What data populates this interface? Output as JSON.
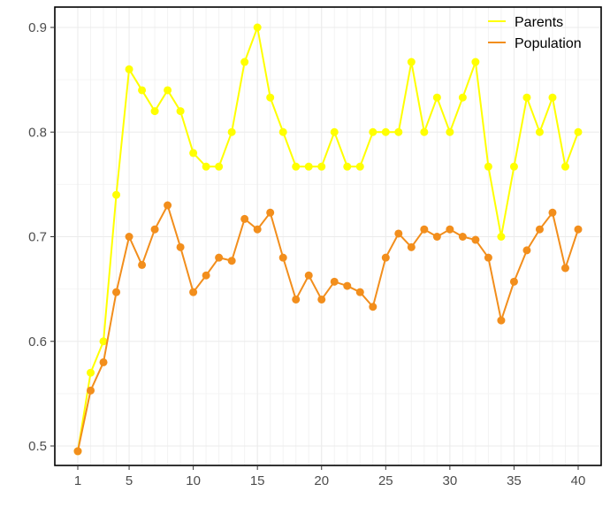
{
  "chart_data": {
    "type": "line",
    "title": "",
    "xlabel": "",
    "ylabel": "",
    "xlim": [
      1,
      40
    ],
    "ylim": [
      0.5,
      0.9
    ],
    "grid": true,
    "legend_position": "top-right",
    "x_ticks": [
      1,
      5,
      10,
      15,
      20,
      25,
      30,
      35,
      40
    ],
    "x_tick_labels": [
      "1",
      "5",
      "10",
      "15",
      "20",
      "25",
      "30",
      "35",
      "40"
    ],
    "y_ticks": [
      0.5,
      0.6,
      0.7,
      0.8,
      0.9
    ],
    "y_tick_labels": [
      "0.5",
      "0.6",
      "0.7",
      "0.8",
      "0.9"
    ],
    "x": [
      1,
      2,
      3,
      4,
      5,
      6,
      7,
      8,
      9,
      10,
      11,
      12,
      13,
      14,
      15,
      16,
      17,
      18,
      19,
      20,
      21,
      22,
      23,
      24,
      25,
      26,
      27,
      28,
      29,
      30,
      31,
      32,
      33,
      34,
      35,
      36,
      37,
      38,
      39,
      40
    ],
    "series": [
      {
        "name": "Parents",
        "color": "#ffff00",
        "values": [
          0.495,
          0.57,
          0.6,
          0.74,
          0.86,
          0.84,
          0.82,
          0.84,
          0.82,
          0.78,
          0.767,
          0.767,
          0.8,
          0.867,
          0.9,
          0.833,
          0.8,
          0.767,
          0.767,
          0.767,
          0.8,
          0.767,
          0.767,
          0.8,
          0.8,
          0.8,
          0.867,
          0.8,
          0.833,
          0.8,
          0.833,
          0.867,
          0.767,
          0.7,
          0.767,
          0.833,
          0.8,
          0.833,
          0.767,
          0.8
        ]
      },
      {
        "name": "Population",
        "color": "#f28e1c",
        "values": [
          0.495,
          0.553,
          0.58,
          0.647,
          0.7,
          0.673,
          0.707,
          0.73,
          0.69,
          0.647,
          0.663,
          0.68,
          0.677,
          0.717,
          0.707,
          0.723,
          0.68,
          0.64,
          0.663,
          0.64,
          0.657,
          0.653,
          0.647,
          0.633,
          0.68,
          0.703,
          0.69,
          0.707,
          0.7,
          0.707,
          0.7,
          0.697,
          0.68,
          0.62,
          0.657,
          0.687,
          0.707,
          0.723,
          0.67,
          0.707
        ]
      }
    ]
  }
}
